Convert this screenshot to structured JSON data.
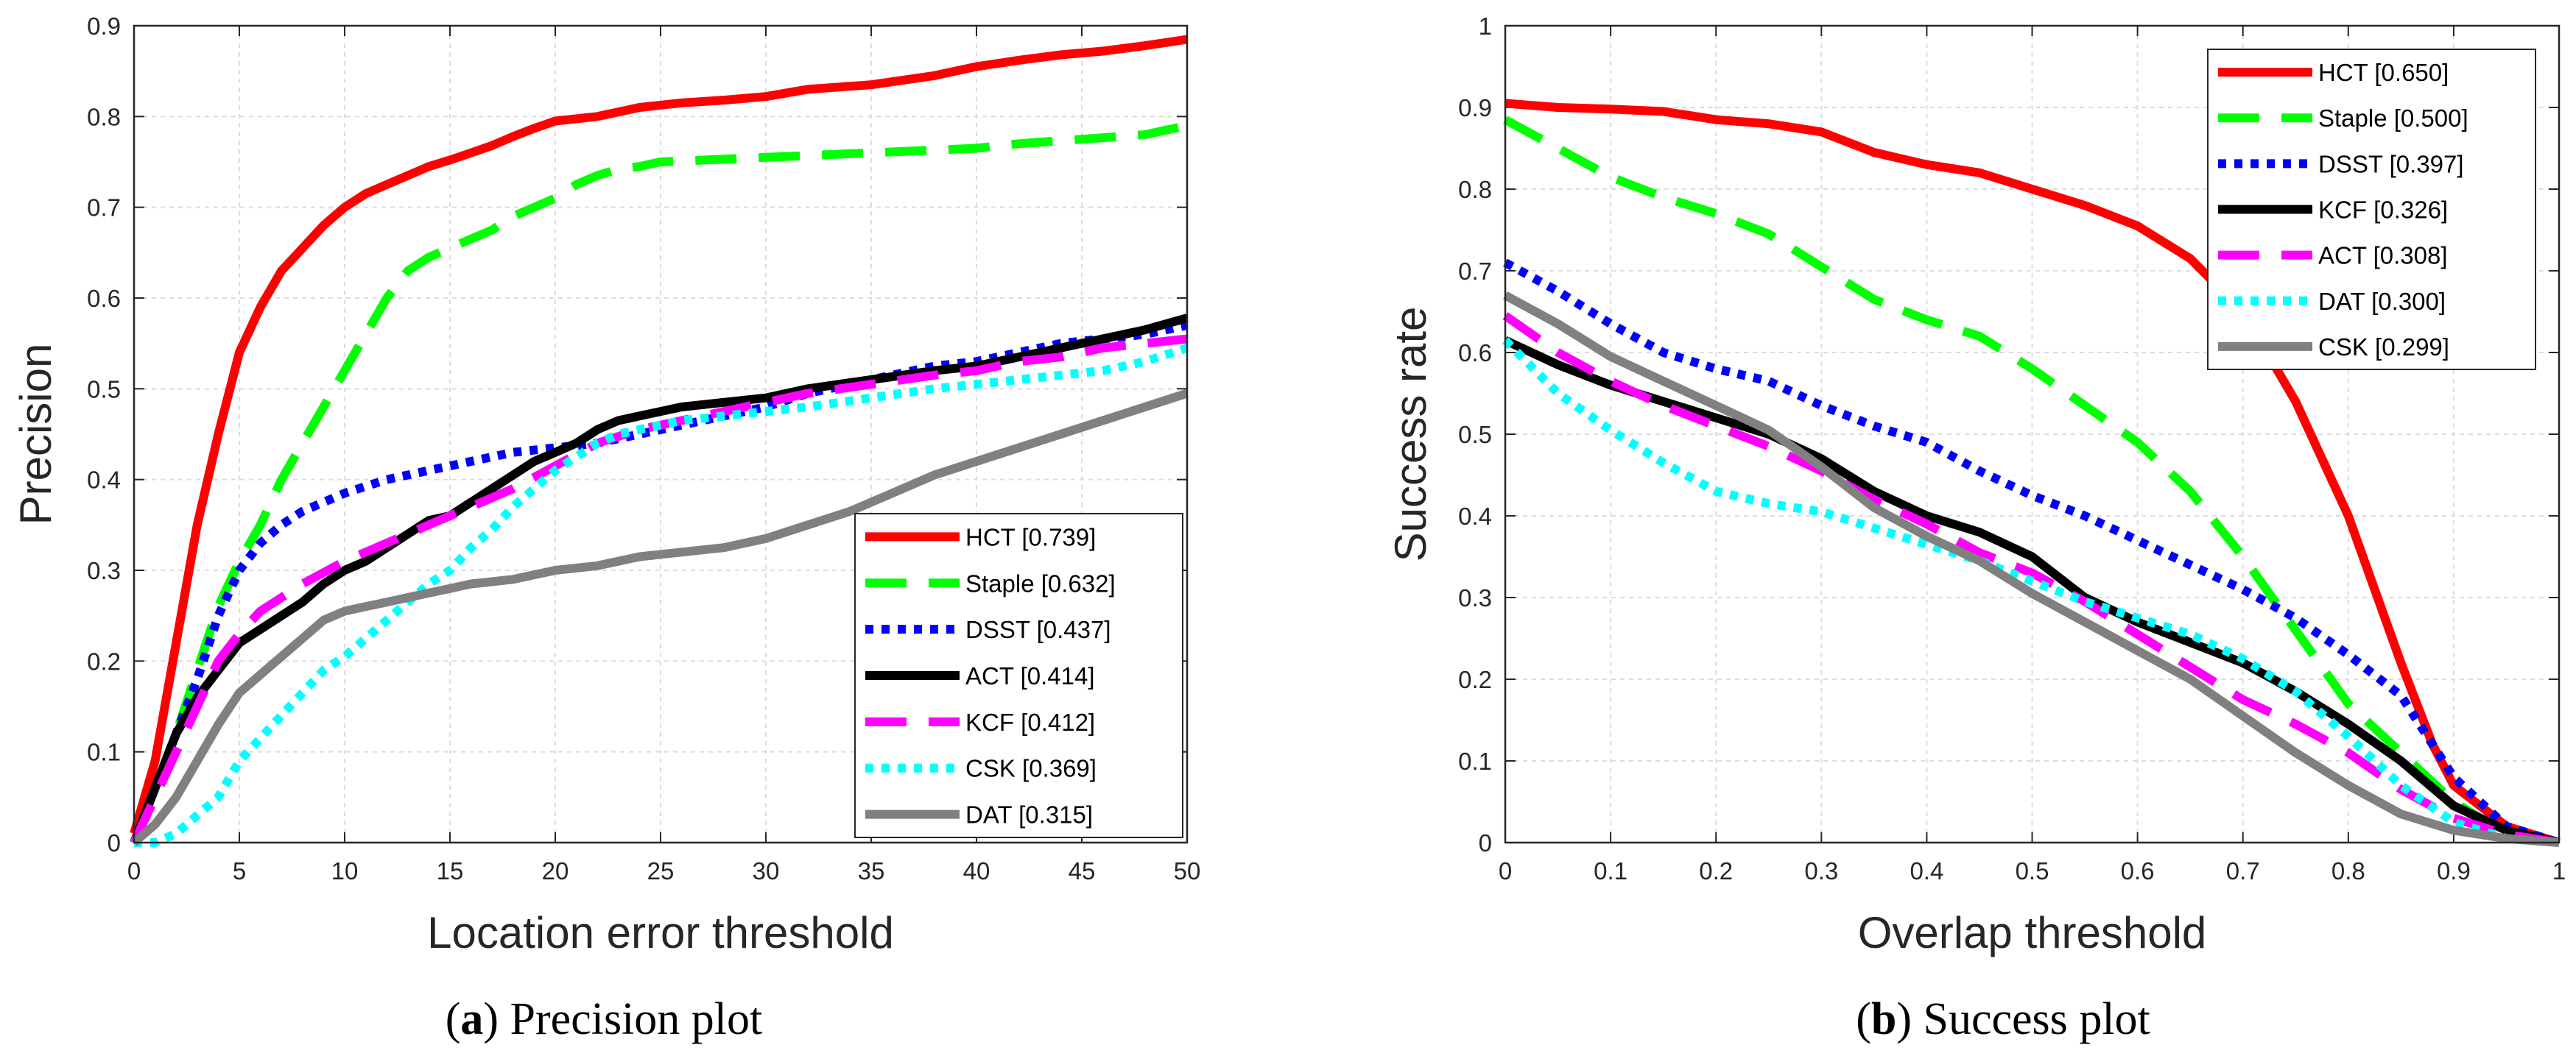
{
  "chart_data": [
    {
      "type": "line",
      "caption": {
        "prefix": "(",
        "letter": "a",
        "text": ") Precision plot"
      },
      "xlabel": "Location error threshold",
      "ylabel": "Precision",
      "xlim": [
        0,
        50
      ],
      "ylim": [
        0,
        0.9
      ],
      "xticks": [
        "0",
        "5",
        "10",
        "15",
        "20",
        "25",
        "30",
        "35",
        "40",
        "45",
        "50"
      ],
      "yticks": [
        "0",
        "0.1",
        "0.2",
        "0.3",
        "0.4",
        "0.5",
        "0.6",
        "0.7",
        "0.8",
        "0.9"
      ],
      "grid": true,
      "legend_position": "bottom-right",
      "series": [
        {
          "name": "HCT [0.739]",
          "color": "#ff0000",
          "style": "solid",
          "x": [
            0,
            1,
            2,
            3,
            4,
            5,
            6,
            7,
            8,
            9,
            10,
            11,
            12,
            13,
            14,
            15,
            16,
            17,
            18,
            19,
            20,
            22,
            24,
            26,
            28,
            30,
            32,
            35,
            38,
            40,
            42,
            44,
            46,
            48,
            50
          ],
          "y": [
            0.01,
            0.09,
            0.22,
            0.35,
            0.45,
            0.54,
            0.59,
            0.63,
            0.655,
            0.68,
            0.7,
            0.715,
            0.725,
            0.735,
            0.745,
            0.752,
            0.76,
            0.768,
            0.778,
            0.787,
            0.795,
            0.8,
            0.81,
            0.815,
            0.818,
            0.822,
            0.83,
            0.835,
            0.845,
            0.855,
            0.862,
            0.868,
            0.872,
            0.878,
            0.885
          ]
        },
        {
          "name": "Staple [0.632]",
          "color": "#00ff00",
          "style": "dashed",
          "x": [
            0,
            1,
            2,
            3,
            4,
            5,
            6,
            7,
            8,
            9,
            10,
            11,
            12,
            13,
            14,
            15,
            16,
            17,
            18,
            19,
            20,
            21,
            22,
            23,
            24,
            25,
            30,
            35,
            40,
            42,
            45,
            48,
            50
          ],
          "y": [
            0.0,
            0.05,
            0.12,
            0.19,
            0.26,
            0.31,
            0.35,
            0.4,
            0.44,
            0.48,
            0.52,
            0.56,
            0.6,
            0.63,
            0.645,
            0.655,
            0.665,
            0.675,
            0.69,
            0.7,
            0.71,
            0.725,
            0.735,
            0.742,
            0.745,
            0.75,
            0.755,
            0.76,
            0.765,
            0.77,
            0.775,
            0.78,
            0.79
          ]
        },
        {
          "name": "DSST [0.437]",
          "color": "#0000ff",
          "style": "dotted",
          "x": [
            0,
            1,
            2,
            3,
            4,
            5,
            6,
            7,
            8,
            10,
            12,
            14,
            16,
            18,
            20,
            22,
            24,
            26,
            28,
            30,
            32,
            35,
            38,
            40,
            42,
            44,
            46,
            48,
            50
          ],
          "y": [
            0.0,
            0.06,
            0.12,
            0.18,
            0.25,
            0.3,
            0.33,
            0.35,
            0.365,
            0.385,
            0.4,
            0.41,
            0.42,
            0.43,
            0.435,
            0.44,
            0.45,
            0.46,
            0.47,
            0.48,
            0.495,
            0.51,
            0.525,
            0.53,
            0.54,
            0.55,
            0.555,
            0.56,
            0.57
          ]
        },
        {
          "name": "ACT [0.414]",
          "color": "#000000",
          "style": "solid",
          "x": [
            0,
            1,
            2,
            3,
            4,
            5,
            6,
            7,
            8,
            9,
            10,
            11,
            12,
            13,
            14,
            15,
            16,
            17,
            18,
            19,
            20,
            21,
            22,
            23,
            24,
            26,
            28,
            30,
            32,
            35,
            38,
            40,
            42,
            44,
            46,
            48,
            50
          ],
          "y": [
            0.0,
            0.06,
            0.12,
            0.16,
            0.19,
            0.22,
            0.235,
            0.25,
            0.265,
            0.285,
            0.3,
            0.31,
            0.325,
            0.34,
            0.355,
            0.36,
            0.375,
            0.39,
            0.405,
            0.42,
            0.43,
            0.44,
            0.455,
            0.465,
            0.47,
            0.48,
            0.485,
            0.49,
            0.5,
            0.51,
            0.52,
            0.525,
            0.535,
            0.545,
            0.555,
            0.565,
            0.578
          ]
        },
        {
          "name": "KCF [0.412]",
          "color": "#ff00ff",
          "style": "dashed",
          "x": [
            0,
            1,
            2,
            3,
            4,
            5,
            6,
            7,
            8,
            10,
            12,
            14,
            16,
            18,
            20,
            22,
            24,
            26,
            28,
            30,
            32,
            35,
            38,
            40,
            42,
            44,
            46,
            48,
            50
          ],
          "y": [
            0.0,
            0.05,
            0.1,
            0.15,
            0.2,
            0.23,
            0.255,
            0.27,
            0.285,
            0.31,
            0.33,
            0.35,
            0.37,
            0.39,
            0.415,
            0.44,
            0.455,
            0.465,
            0.475,
            0.485,
            0.495,
            0.505,
            0.515,
            0.52,
            0.53,
            0.535,
            0.545,
            0.55,
            0.555
          ]
        },
        {
          "name": "CSK [0.369]",
          "color": "#00ffff",
          "style": "dotted",
          "x": [
            0,
            1,
            2,
            3,
            4,
            5,
            6,
            7,
            8,
            9,
            10,
            11,
            12,
            13,
            14,
            15,
            16,
            17,
            18,
            19,
            20,
            21,
            22,
            23,
            24,
            25,
            26,
            28,
            30,
            32,
            35,
            38,
            40,
            42,
            44,
            46,
            48,
            50
          ],
          "y": [
            0.0,
            0.0,
            0.01,
            0.03,
            0.05,
            0.09,
            0.115,
            0.14,
            0.165,
            0.19,
            0.205,
            0.225,
            0.245,
            0.265,
            0.285,
            0.3,
            0.325,
            0.345,
            0.37,
            0.39,
            0.41,
            0.425,
            0.44,
            0.45,
            0.455,
            0.46,
            0.465,
            0.47,
            0.475,
            0.48,
            0.49,
            0.5,
            0.505,
            0.51,
            0.515,
            0.52,
            0.53,
            0.545
          ]
        },
        {
          "name": "DAT [0.315]",
          "color": "#808080",
          "style": "solid",
          "x": [
            0,
            1,
            2,
            3,
            4,
            5,
            6,
            7,
            8,
            9,
            10,
            11,
            12,
            13,
            14,
            15,
            16,
            18,
            20,
            22,
            24,
            26,
            28,
            30,
            32,
            34,
            36,
            38,
            40,
            42,
            44,
            46,
            48,
            50
          ],
          "y": [
            0.0,
            0.02,
            0.05,
            0.09,
            0.13,
            0.165,
            0.185,
            0.205,
            0.225,
            0.245,
            0.255,
            0.26,
            0.265,
            0.27,
            0.275,
            0.28,
            0.285,
            0.29,
            0.3,
            0.305,
            0.315,
            0.32,
            0.325,
            0.335,
            0.35,
            0.365,
            0.385,
            0.405,
            0.42,
            0.435,
            0.45,
            0.465,
            0.48,
            0.495
          ]
        }
      ]
    },
    {
      "type": "line",
      "caption": {
        "prefix": "(",
        "letter": "b",
        "text": ") Success plot"
      },
      "xlabel": "Overlap threshold",
      "ylabel": "Success rate",
      "xlim": [
        0,
        1
      ],
      "ylim": [
        0,
        1
      ],
      "xticks": [
        "0",
        "0.1",
        "0.2",
        "0.3",
        "0.4",
        "0.5",
        "0.6",
        "0.7",
        "0.8",
        "0.9",
        "1"
      ],
      "yticks": [
        "0",
        "0.1",
        "0.2",
        "0.3",
        "0.4",
        "0.5",
        "0.6",
        "0.7",
        "0.8",
        "0.9",
        "1"
      ],
      "grid": true,
      "legend_position": "top-right",
      "series": [
        {
          "name": "HCT [0.650]",
          "color": "#ff0000",
          "style": "solid",
          "x": [
            0,
            0.05,
            0.1,
            0.15,
            0.2,
            0.25,
            0.3,
            0.35,
            0.4,
            0.45,
            0.5,
            0.55,
            0.6,
            0.65,
            0.7,
            0.75,
            0.8,
            0.85,
            0.88,
            0.9,
            0.95,
            1
          ],
          "y": [
            0.905,
            0.9,
            0.898,
            0.895,
            0.885,
            0.88,
            0.87,
            0.845,
            0.83,
            0.82,
            0.8,
            0.78,
            0.755,
            0.715,
            0.65,
            0.54,
            0.4,
            0.22,
            0.12,
            0.07,
            0.02,
            0.0
          ]
        },
        {
          "name": "Staple [0.500]",
          "color": "#00ff00",
          "style": "dashed",
          "x": [
            0,
            0.05,
            0.1,
            0.15,
            0.2,
            0.25,
            0.3,
            0.35,
            0.4,
            0.45,
            0.5,
            0.55,
            0.6,
            0.65,
            0.7,
            0.75,
            0.8,
            0.85,
            0.9,
            0.95,
            1
          ],
          "y": [
            0.885,
            0.85,
            0.815,
            0.79,
            0.77,
            0.745,
            0.705,
            0.665,
            0.64,
            0.62,
            0.58,
            0.535,
            0.49,
            0.43,
            0.35,
            0.26,
            0.17,
            0.11,
            0.05,
            0.01,
            0.0
          ]
        },
        {
          "name": "DSST [0.397]",
          "color": "#0000ff",
          "style": "dotted",
          "x": [
            0,
            0.05,
            0.1,
            0.15,
            0.2,
            0.25,
            0.3,
            0.35,
            0.4,
            0.45,
            0.5,
            0.55,
            0.6,
            0.65,
            0.7,
            0.75,
            0.8,
            0.85,
            0.9,
            0.95,
            1
          ],
          "y": [
            0.71,
            0.675,
            0.635,
            0.6,
            0.58,
            0.565,
            0.535,
            0.51,
            0.49,
            0.455,
            0.425,
            0.4,
            0.37,
            0.34,
            0.31,
            0.275,
            0.23,
            0.18,
            0.08,
            0.02,
            0.0
          ]
        },
        {
          "name": "KCF [0.326]",
          "color": "#000000",
          "style": "solid",
          "x": [
            0,
            0.05,
            0.1,
            0.15,
            0.2,
            0.25,
            0.3,
            0.35,
            0.4,
            0.45,
            0.5,
            0.55,
            0.6,
            0.65,
            0.7,
            0.75,
            0.8,
            0.85,
            0.9,
            0.95,
            1
          ],
          "y": [
            0.615,
            0.585,
            0.56,
            0.54,
            0.52,
            0.5,
            0.47,
            0.43,
            0.4,
            0.38,
            0.35,
            0.3,
            0.27,
            0.245,
            0.22,
            0.185,
            0.145,
            0.1,
            0.045,
            0.015,
            0.0
          ]
        },
        {
          "name": "ACT [0.308]",
          "color": "#ff00ff",
          "style": "dashed",
          "x": [
            0,
            0.05,
            0.1,
            0.15,
            0.2,
            0.25,
            0.3,
            0.35,
            0.4,
            0.45,
            0.5,
            0.55,
            0.6,
            0.65,
            0.7,
            0.75,
            0.8,
            0.85,
            0.9,
            0.95,
            1
          ],
          "y": [
            0.645,
            0.6,
            0.565,
            0.535,
            0.51,
            0.485,
            0.455,
            0.42,
            0.39,
            0.355,
            0.33,
            0.295,
            0.255,
            0.215,
            0.175,
            0.145,
            0.11,
            0.065,
            0.03,
            0.01,
            0.0
          ]
        },
        {
          "name": "DAT [0.300]",
          "color": "#00ffff",
          "style": "dotted",
          "x": [
            0,
            0.05,
            0.1,
            0.15,
            0.2,
            0.25,
            0.3,
            0.35,
            0.4,
            0.45,
            0.5,
            0.55,
            0.6,
            0.65,
            0.7,
            0.75,
            0.8,
            0.85,
            0.9,
            0.95,
            1
          ],
          "y": [
            0.615,
            0.55,
            0.505,
            0.465,
            0.43,
            0.415,
            0.405,
            0.385,
            0.365,
            0.345,
            0.32,
            0.295,
            0.275,
            0.255,
            0.225,
            0.185,
            0.13,
            0.07,
            0.025,
            0.005,
            0.0
          ]
        },
        {
          "name": "CSK [0.299]",
          "color": "#808080",
          "style": "solid",
          "x": [
            0,
            0.05,
            0.1,
            0.15,
            0.2,
            0.25,
            0.3,
            0.35,
            0.4,
            0.45,
            0.5,
            0.55,
            0.6,
            0.65,
            0.7,
            0.75,
            0.8,
            0.85,
            0.9,
            0.95,
            1
          ],
          "y": [
            0.67,
            0.635,
            0.595,
            0.565,
            0.535,
            0.505,
            0.46,
            0.41,
            0.375,
            0.345,
            0.305,
            0.27,
            0.235,
            0.2,
            0.155,
            0.11,
            0.07,
            0.035,
            0.015,
            0.005,
            0.0
          ]
        }
      ]
    }
  ]
}
